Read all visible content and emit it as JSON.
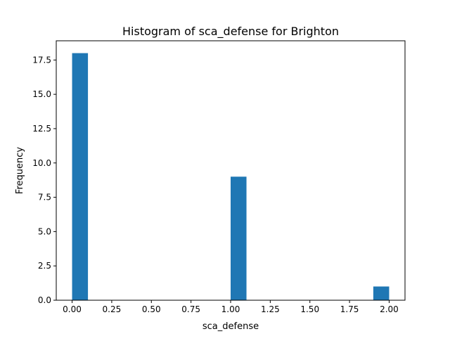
{
  "chart_data": {
    "type": "bar",
    "title": "Histogram of sca_defense for Brighton",
    "xlabel": "sca_defense",
    "ylabel": "Frequency",
    "xlim": [
      -0.1,
      2.1
    ],
    "ylim": [
      0,
      18.9
    ],
    "grid": false,
    "bar_color": "#1f77b4",
    "bins": [
      {
        "x0": 0.0,
        "x1": 0.1,
        "count": 18
      },
      {
        "x0": 0.1,
        "x1": 0.2,
        "count": 0
      },
      {
        "x0": 0.2,
        "x1": 0.3,
        "count": 0
      },
      {
        "x0": 0.3,
        "x1": 0.4,
        "count": 0
      },
      {
        "x0": 0.4,
        "x1": 0.5,
        "count": 0
      },
      {
        "x0": 0.5,
        "x1": 0.6,
        "count": 0
      },
      {
        "x0": 0.6,
        "x1": 0.7,
        "count": 0
      },
      {
        "x0": 0.7,
        "x1": 0.8,
        "count": 0
      },
      {
        "x0": 0.8,
        "x1": 0.9,
        "count": 0
      },
      {
        "x0": 0.9,
        "x1": 1.0,
        "count": 0
      },
      {
        "x0": 1.0,
        "x1": 1.1,
        "count": 9
      },
      {
        "x0": 1.1,
        "x1": 1.2,
        "count": 0
      },
      {
        "x0": 1.2,
        "x1": 1.3,
        "count": 0
      },
      {
        "x0": 1.3,
        "x1": 1.4,
        "count": 0
      },
      {
        "x0": 1.4,
        "x1": 1.5,
        "count": 0
      },
      {
        "x0": 1.5,
        "x1": 1.6,
        "count": 0
      },
      {
        "x0": 1.6,
        "x1": 1.7,
        "count": 0
      },
      {
        "x0": 1.7,
        "x1": 1.8,
        "count": 0
      },
      {
        "x0": 1.8,
        "x1": 1.9,
        "count": 0
      },
      {
        "x0": 1.9,
        "x1": 2.0,
        "count": 1
      }
    ],
    "xticks": [
      0.0,
      0.25,
      0.5,
      0.75,
      1.0,
      1.25,
      1.5,
      1.75,
      2.0
    ],
    "xtick_labels": [
      "0.00",
      "0.25",
      "0.50",
      "0.75",
      "1.00",
      "1.25",
      "1.50",
      "1.75",
      "2.00"
    ],
    "yticks": [
      0.0,
      2.5,
      5.0,
      7.5,
      10.0,
      12.5,
      15.0,
      17.5
    ],
    "ytick_labels": [
      "0.0",
      "2.5",
      "5.0",
      "7.5",
      "10.0",
      "12.5",
      "15.0",
      "17.5"
    ]
  }
}
